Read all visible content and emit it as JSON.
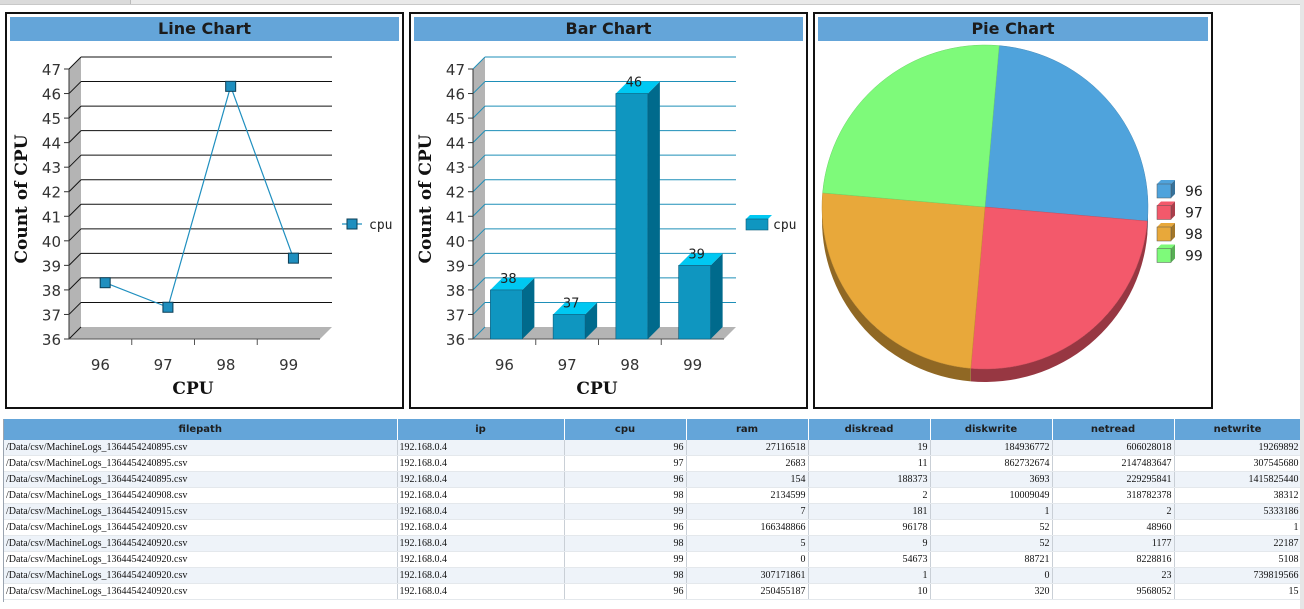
{
  "panels": {
    "line_title": "Line Chart",
    "bar_title": "Bar Chart",
    "pie_title": "Pie Chart"
  },
  "chart_data": [
    {
      "type": "line",
      "title": "Line Chart",
      "categories": [
        "96",
        "97",
        "98",
        "99"
      ],
      "series": [
        {
          "name": "cpu",
          "values": [
            38,
            37,
            46,
            39
          ]
        }
      ],
      "xlabel": "CPU",
      "ylabel": "Count of CPU",
      "ylim": [
        36,
        47
      ],
      "yticks": [
        "36",
        "37",
        "38",
        "39",
        "40",
        "41",
        "42",
        "43",
        "44",
        "45",
        "46",
        "47"
      ],
      "grid": true,
      "legend": "right",
      "color": "#1f8fbf"
    },
    {
      "type": "bar",
      "title": "Bar Chart",
      "categories": [
        "96",
        "97",
        "98",
        "99"
      ],
      "series": [
        {
          "name": "cpu",
          "values": [
            38,
            37,
            46,
            39
          ]
        }
      ],
      "data_labels": [
        "38",
        "37",
        "46",
        "39"
      ],
      "xlabel": "CPU",
      "ylabel": "Count of CPU",
      "ylim": [
        36,
        47
      ],
      "yticks": [
        "36",
        "37",
        "38",
        "39",
        "40",
        "41",
        "42",
        "43",
        "44",
        "45",
        "46",
        "47"
      ],
      "grid": true,
      "legend": "right",
      "color": "#0f96c0"
    },
    {
      "type": "pie",
      "title": "Pie Chart",
      "categories": [
        "96",
        "97",
        "98",
        "99"
      ],
      "values": [
        25,
        25,
        25,
        25
      ],
      "colors": [
        "#4fa3dc",
        "#f3596b",
        "#e8a83a",
        "#7efa7a"
      ],
      "legend": "right"
    }
  ],
  "table": {
    "columns": [
      "filepath",
      "ip",
      "cpu",
      "ram",
      "diskread",
      "diskwrite",
      "netread",
      "netwrite"
    ],
    "rows": [
      [
        "/Data/csv/MachineLogs_1364454240895.csv",
        "192.168.0.4",
        "96",
        "27116518",
        "19",
        "184936772",
        "606028018",
        "19269892"
      ],
      [
        "/Data/csv/MachineLogs_1364454240895.csv",
        "192.168.0.4",
        "97",
        "2683",
        "11",
        "862732674",
        "2147483647",
        "307545680"
      ],
      [
        "/Data/csv/MachineLogs_1364454240895.csv",
        "192.168.0.4",
        "96",
        "154",
        "188373",
        "3693",
        "229295841",
        "1415825440"
      ],
      [
        "/Data/csv/MachineLogs_1364454240908.csv",
        "192.168.0.4",
        "98",
        "2134599",
        "2",
        "10009049",
        "318782378",
        "38312"
      ],
      [
        "/Data/csv/MachineLogs_1364454240915.csv",
        "192.168.0.4",
        "99",
        "7",
        "181",
        "1",
        "2",
        "5333186"
      ],
      [
        "/Data/csv/MachineLogs_1364454240920.csv",
        "192.168.0.4",
        "96",
        "166348866",
        "96178",
        "52",
        "48960",
        "1"
      ],
      [
        "/Data/csv/MachineLogs_1364454240920.csv",
        "192.168.0.4",
        "98",
        "5",
        "9",
        "52",
        "1177",
        "22187"
      ],
      [
        "/Data/csv/MachineLogs_1364454240920.csv",
        "192.168.0.4",
        "99",
        "0",
        "54673",
        "88721",
        "8228816",
        "5108"
      ],
      [
        "/Data/csv/MachineLogs_1364454240920.csv",
        "192.168.0.4",
        "98",
        "307171861",
        "1",
        "0",
        "23",
        "739819566"
      ],
      [
        "/Data/csv/MachineLogs_1364454240920.csv",
        "192.168.0.4",
        "96",
        "250455187",
        "10",
        "320",
        "9568052",
        "15"
      ]
    ]
  }
}
